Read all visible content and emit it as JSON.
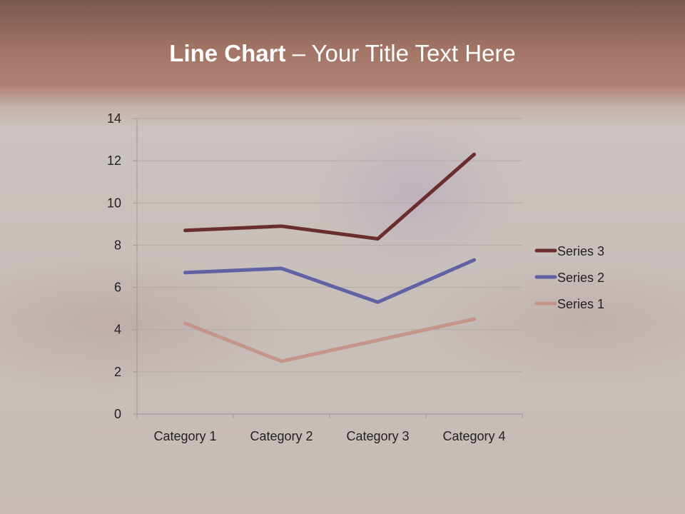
{
  "title": {
    "bold": "Line Chart",
    "rest": " – Your Title Text Here"
  },
  "chart_data": {
    "type": "line",
    "title": "Line Chart – Your Title Text Here",
    "categories": [
      "Category 1",
      "Category 2",
      "Category 3",
      "Category 4"
    ],
    "series": [
      {
        "name": "Series 1",
        "values": [
          4.3,
          2.5,
          3.5,
          4.5
        ],
        "color": "#c4968a"
      },
      {
        "name": "Series 2",
        "values": [
          6.7,
          6.9,
          5.3,
          7.3
        ],
        "color": "#6062a4"
      },
      {
        "name": "Series 3",
        "values": [
          8.7,
          8.9,
          8.3,
          12.3
        ],
        "color": "#6a2e2e"
      }
    ],
    "ylim": [
      0,
      14
    ],
    "yticks": [
      0,
      2,
      4,
      6,
      8,
      10,
      12,
      14
    ],
    "grid": true,
    "legend": "right"
  }
}
